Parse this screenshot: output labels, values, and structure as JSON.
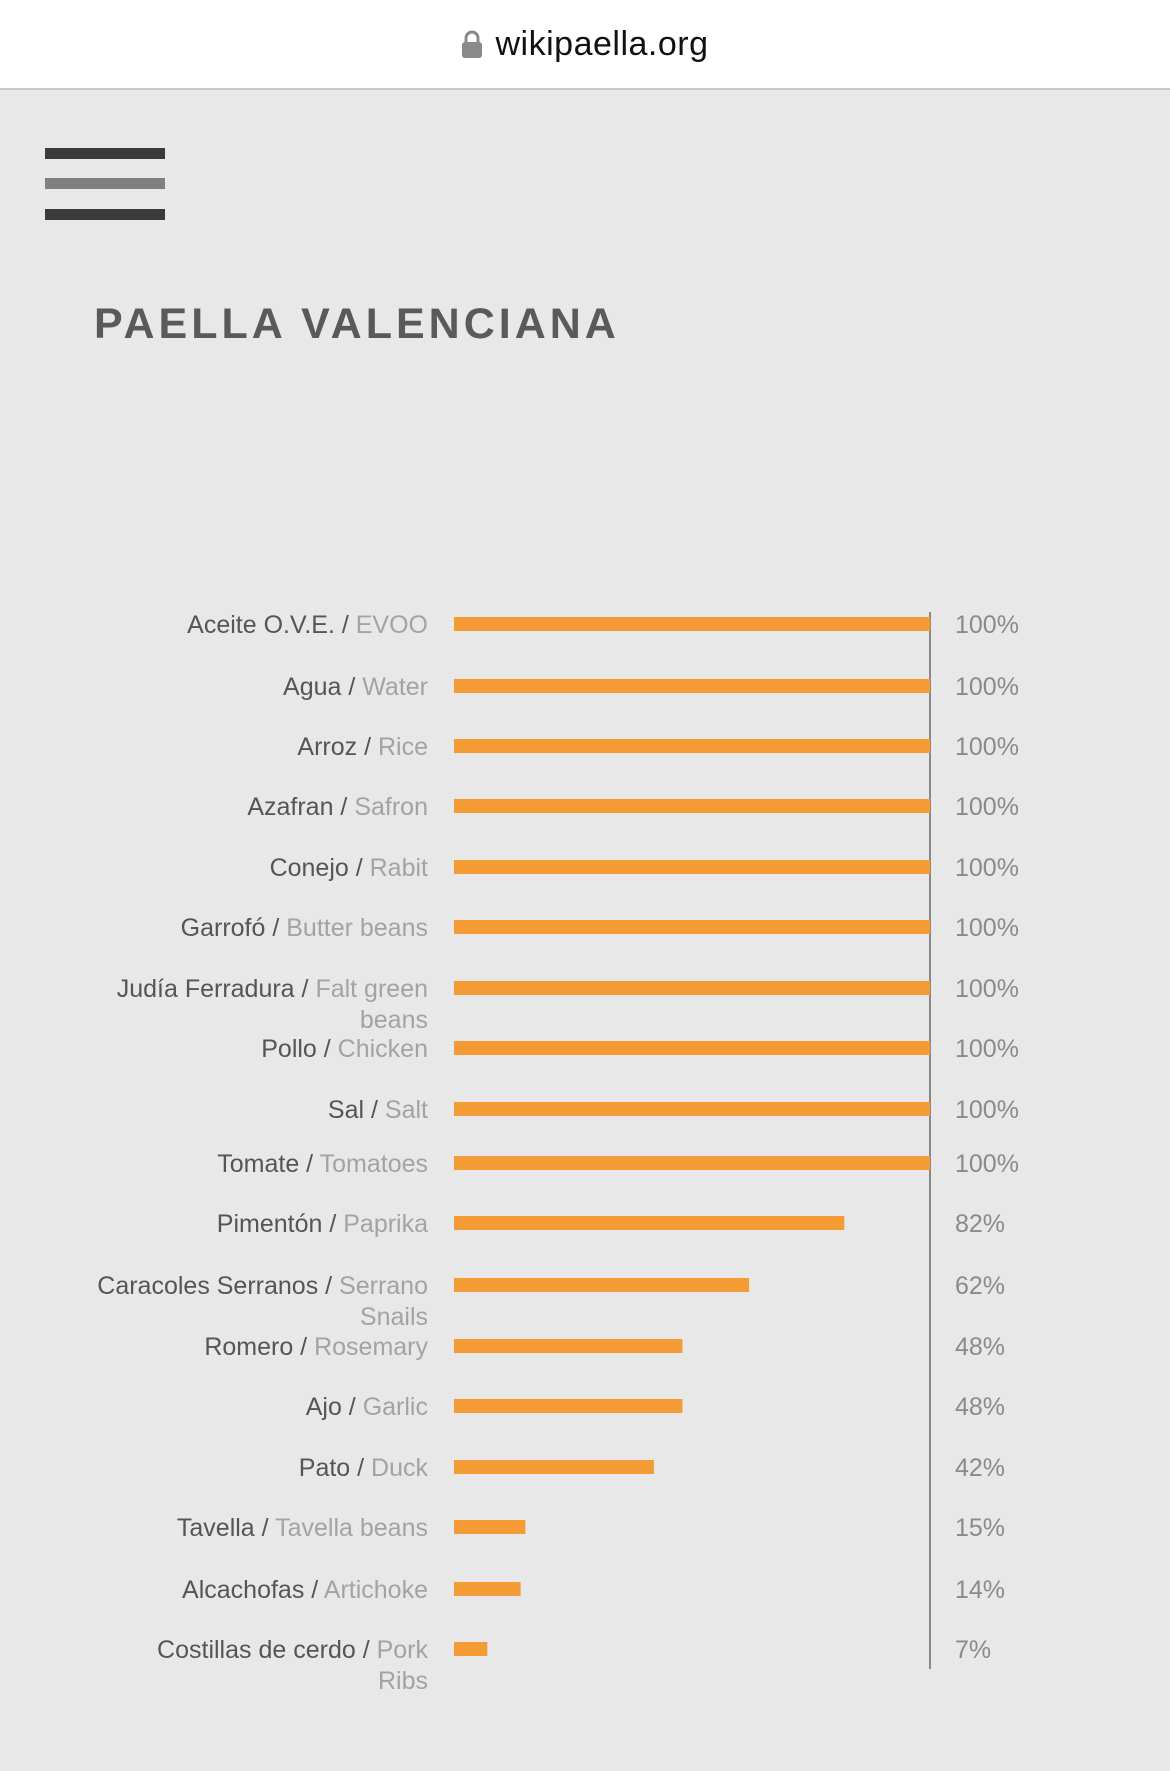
{
  "browser": {
    "url": "wikipaella.org",
    "lock_icon": "lock-icon"
  },
  "menu": {
    "icon": "hamburger-menu-icon"
  },
  "page": {
    "title": "PAELLA VALENCIANA"
  },
  "colors": {
    "bar": "#f59b35",
    "axis": "#888888",
    "label_primary": "#555555",
    "label_secondary": "#a3a3a3",
    "background": "#e8e8e8"
  },
  "chart_data": {
    "type": "bar",
    "orientation": "horizontal",
    "xlim": [
      0,
      100
    ],
    "value_suffix": "%",
    "categories": [
      {
        "es": "Aceite O.V.E. /",
        "en": "EVOO"
      },
      {
        "es": "Agua /",
        "en": "Water"
      },
      {
        "es": "Arroz /",
        "en": "Rice"
      },
      {
        "es": "Azafran /",
        "en": "Safron"
      },
      {
        "es": "Conejo /",
        "en": "Rabit"
      },
      {
        "es": "Garrofó /",
        "en": "Butter beans"
      },
      {
        "es": "Judía Ferradura /",
        "en": "Falt green",
        "en2": "beans"
      },
      {
        "es": "Pollo /",
        "en": "Chicken"
      },
      {
        "es": "Sal /",
        "en": "Salt"
      },
      {
        "es": "Tomate /",
        "en": "Tomatoes"
      },
      {
        "es": "Pimentón /",
        "en": "Paprika"
      },
      {
        "es": "Caracoles Serranos /",
        "en": "Serrano",
        "en2": "Snails"
      },
      {
        "es": "Romero /",
        "en": "Rosemary"
      },
      {
        "es": "Ajo /",
        "en": "Garlic"
      },
      {
        "es": "Pato  /",
        "en": "Duck"
      },
      {
        "es": "Tavella /",
        "en": "Tavella beans"
      },
      {
        "es": "Alcachofas /",
        "en": "Artichoke"
      },
      {
        "es": "Costillas de cerdo /",
        "en": "Pork",
        "en2": "Ribs"
      }
    ],
    "values": [
      100,
      100,
      100,
      100,
      100,
      100,
      100,
      100,
      100,
      100,
      82,
      62,
      48,
      48,
      42,
      15,
      14,
      7
    ]
  }
}
